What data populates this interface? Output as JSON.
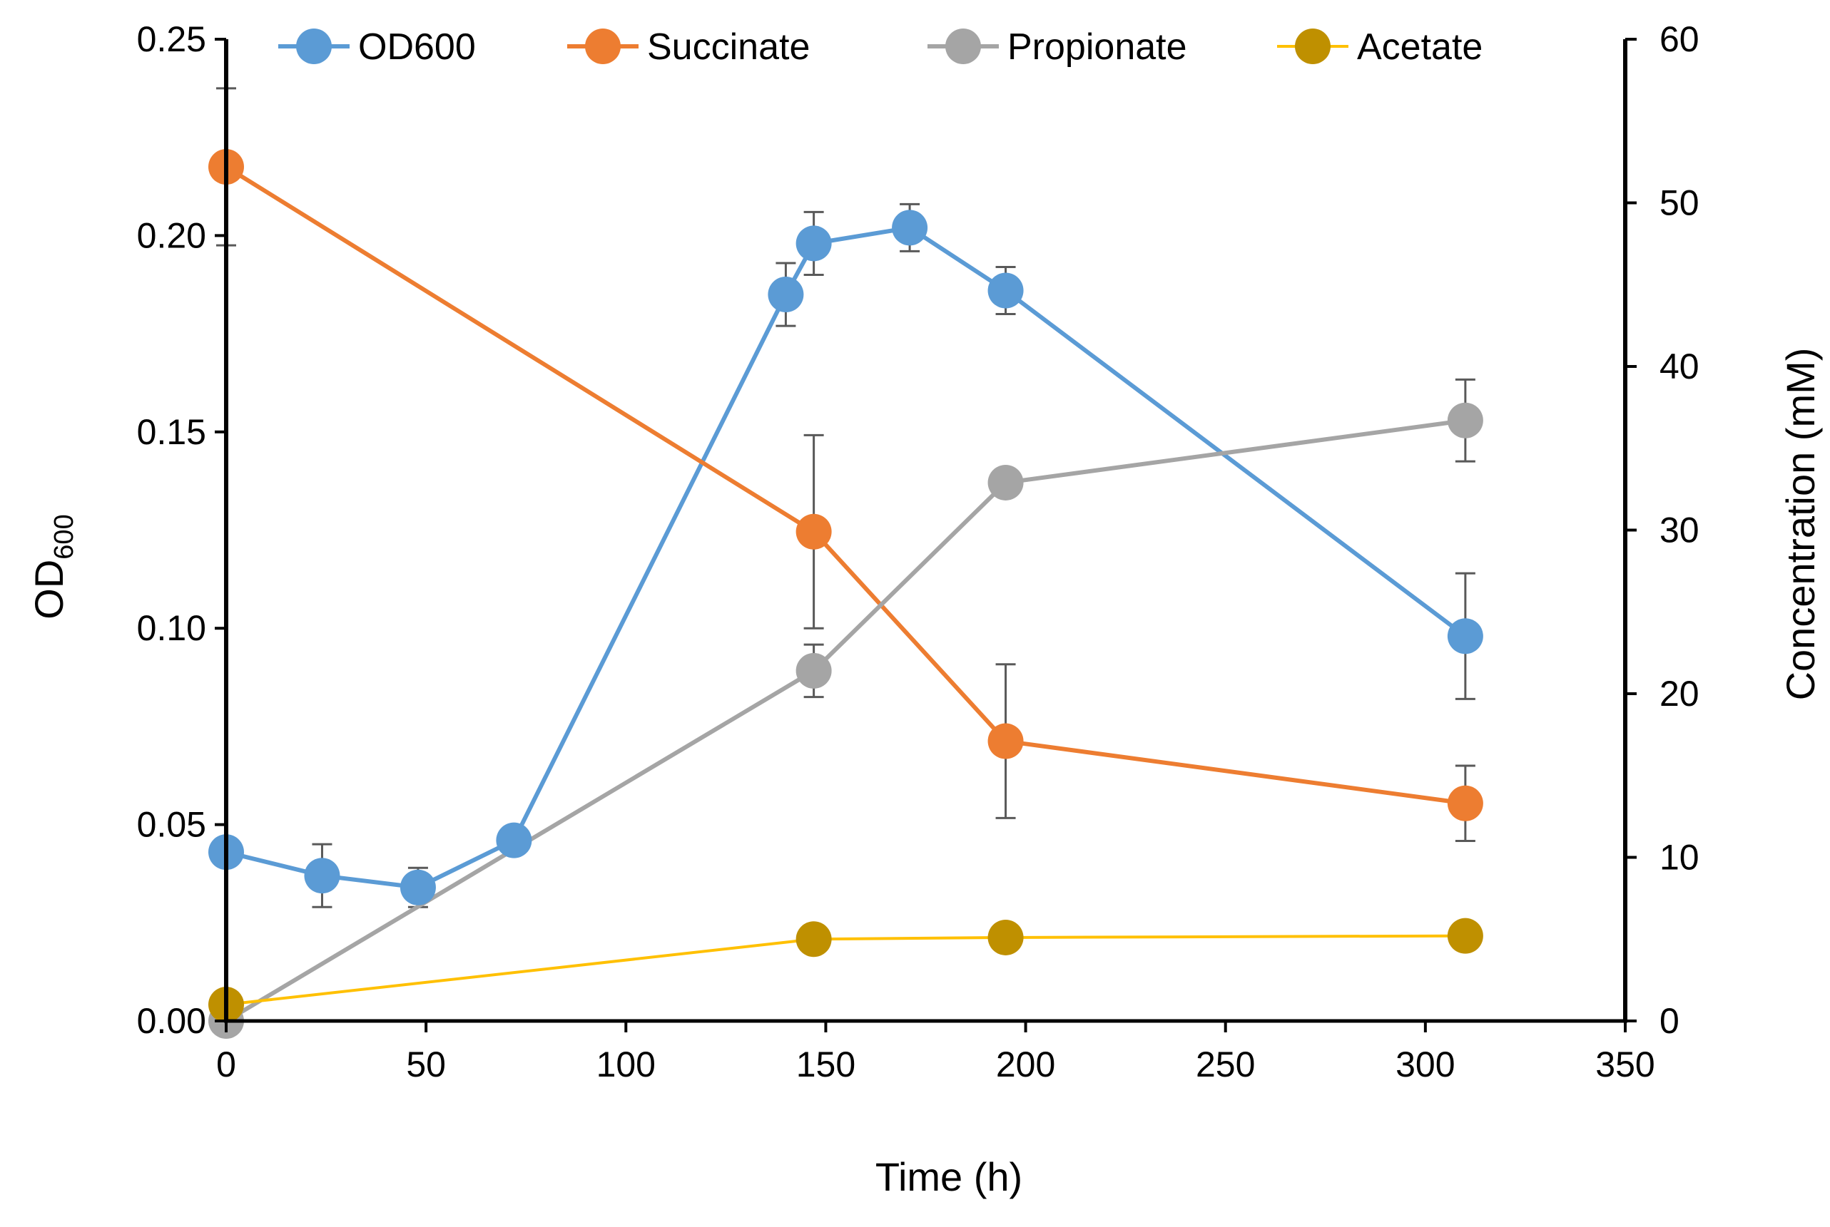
{
  "chart_data": {
    "type": "line",
    "title": "",
    "xlabel": "Time (h)",
    "ylabel_left": {
      "main": "OD",
      "sub": "600"
    },
    "ylabel_right": "Concentration (mM)",
    "xlim": [
      0,
      350
    ],
    "ylim_left": [
      0,
      0.25
    ],
    "ylim_right": [
      0,
      60
    ],
    "x_ticks": [
      "0",
      "50",
      "100",
      "150",
      "200",
      "250",
      "300",
      "350"
    ],
    "y_left_ticks": [
      "0.00",
      "0.05",
      "0.10",
      "0.15",
      "0.20",
      "0.25"
    ],
    "y_right_ticks": [
      "0",
      "10",
      "20",
      "30",
      "40",
      "50",
      "60"
    ],
    "grid": false,
    "legend_position": "top",
    "series": [
      {
        "name": "OD600",
        "axis": "left",
        "color": "#5B9BD5",
        "marker": true,
        "x": [
          0,
          24,
          48,
          72,
          140,
          147,
          171,
          195,
          310
        ],
        "y": [
          0.043,
          0.037,
          0.034,
          0.046,
          0.185,
          0.198,
          0.202,
          0.186,
          0.098
        ],
        "err": [
          0,
          0.008,
          0.005,
          0,
          0.008,
          0.008,
          0.006,
          0.006,
          0.016
        ]
      },
      {
        "name": "Succinate",
        "axis": "right",
        "color": "#ED7D31",
        "marker": true,
        "x": [
          0,
          147,
          195,
          310
        ],
        "y": [
          52.2,
          29.9,
          17.1,
          13.3
        ],
        "err": [
          4.8,
          5.9,
          4.7,
          2.3
        ]
      },
      {
        "name": "Propionate",
        "axis": "right",
        "color": "#A5A5A5",
        "marker": true,
        "x": [
          0,
          147,
          195,
          310
        ],
        "y": [
          0.0,
          21.4,
          32.9,
          36.7
        ],
        "err": [
          0,
          1.6,
          0,
          2.5
        ]
      },
      {
        "name": "Acetate",
        "axis": "right",
        "color": "#FFC000",
        "marker_color": "#BF9000",
        "marker": true,
        "x": [
          0,
          147,
          195,
          310
        ],
        "y": [
          1.0,
          5.0,
          5.1,
          5.2
        ],
        "err": [
          0,
          0,
          0,
          0
        ]
      }
    ]
  }
}
